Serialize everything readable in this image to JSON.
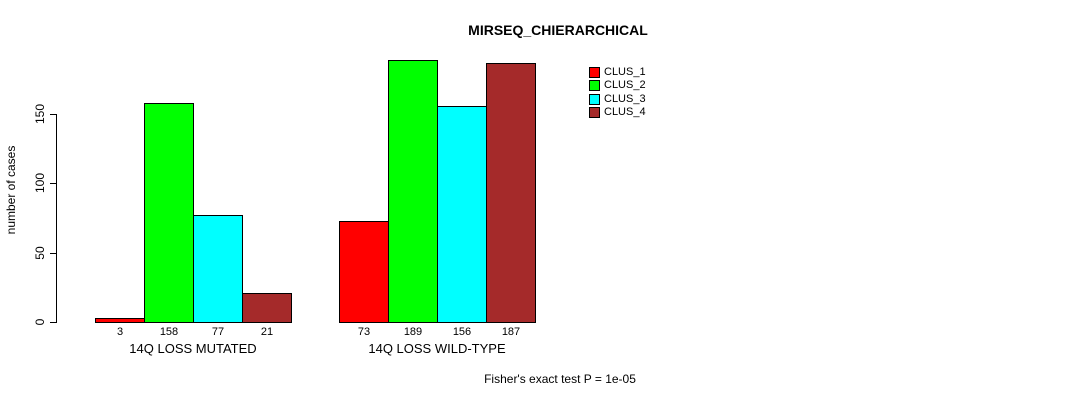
{
  "chart_title": "MIRSEQ_CHIERARCHICAL",
  "y_axis_label": "number of cases",
  "footer_annotation": "Fisher's exact test P = 1e-05",
  "colors": {
    "background": "#FFFFFF",
    "axis": "#000000",
    "bar_border": "#000000",
    "clus_1": "#FF0000",
    "clus_2": "#00FF00",
    "clus_3": "#00FFFF",
    "clus_4": "#A52A2A"
  },
  "chart_data": {
    "type": "bar",
    "title": "MIRSEQ_CHIERARCHICAL",
    "xlabel": "",
    "ylabel": "number of cases",
    "categories": [
      "14Q LOSS MUTATED",
      "14Q LOSS WILD-TYPE"
    ],
    "series": [
      {
        "name": "CLUS_1",
        "color": "#FF0000",
        "values": [
          3,
          73
        ]
      },
      {
        "name": "CLUS_2",
        "color": "#00FF00",
        "values": [
          158,
          189
        ]
      },
      {
        "name": "CLUS_3",
        "color": "#00FFFF",
        "values": [
          77,
          156
        ]
      },
      {
        "name": "CLUS_4",
        "color": "#A52A2A",
        "values": [
          21,
          187
        ]
      }
    ],
    "show_value_labels": true,
    "yticks": [
      0,
      50,
      100,
      150
    ],
    "ylim": [
      0,
      190
    ],
    "grid": false,
    "legend_position": "top-right",
    "annotation": "Fisher's exact test P = 1e-05"
  }
}
